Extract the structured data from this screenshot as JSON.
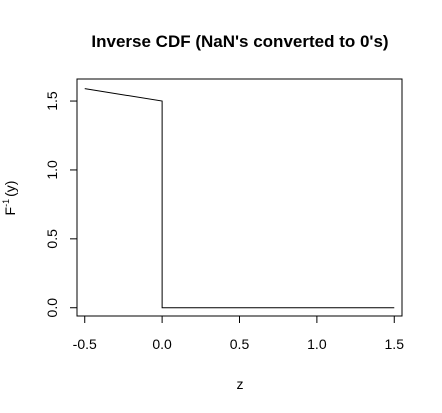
{
  "chart_data": {
    "type": "line",
    "title": "Inverse CDF (NaN's converted to 0's)",
    "xlabel": "z",
    "ylabel_main": "F",
    "ylabel_sup": "-1",
    "ylabel_rest": "(y)",
    "xlim": [
      -0.55,
      1.55
    ],
    "ylim": [
      -0.06,
      1.66
    ],
    "xticks": [
      -0.5,
      0.0,
      0.5,
      1.0,
      1.5
    ],
    "xtick_labels": [
      "-0.5",
      "0.0",
      "0.5",
      "1.0",
      "1.5"
    ],
    "yticks": [
      0.0,
      0.5,
      1.0,
      1.5
    ],
    "ytick_labels": [
      "0.0",
      "0.5",
      "1.0",
      "1.5"
    ],
    "grid": false,
    "legend": "none",
    "series": [
      {
        "x": [
          -0.5,
          0.0,
          0.0,
          1.5
        ],
        "y": [
          1.59,
          1.5,
          0.0,
          0.0
        ]
      }
    ],
    "colors": {
      "line": "#000000",
      "background": "#ffffff"
    }
  }
}
